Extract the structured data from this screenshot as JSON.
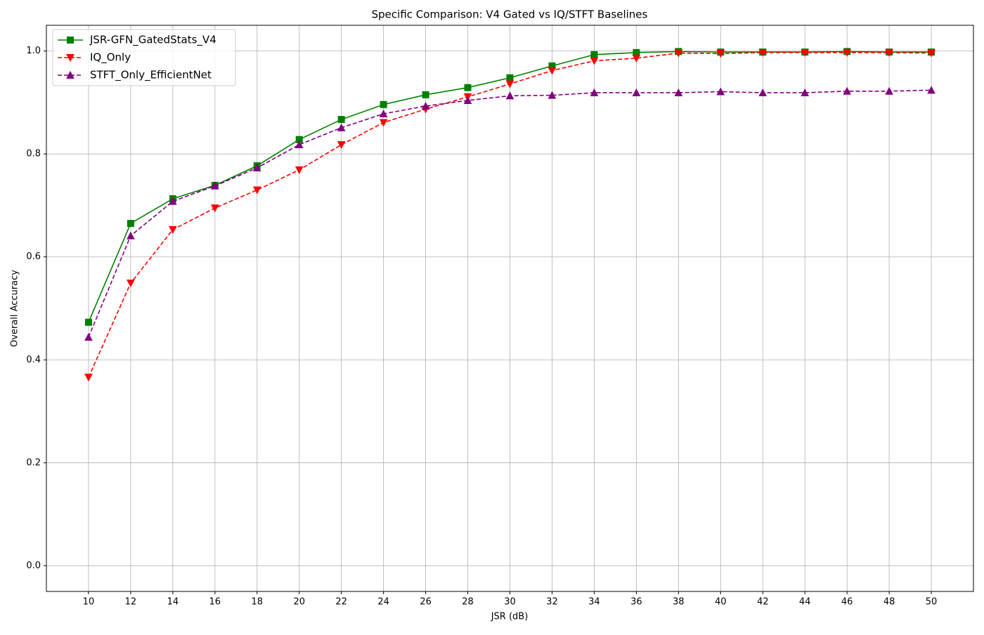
{
  "chart_data": {
    "type": "line",
    "title": "Specific Comparison: V4 Gated vs IQ/STFT Baselines",
    "xlabel": "JSR (dB)",
    "ylabel": "Overall Accuracy",
    "x": [
      10,
      12,
      14,
      16,
      18,
      20,
      22,
      24,
      26,
      28,
      30,
      32,
      34,
      36,
      38,
      40,
      42,
      44,
      46,
      48,
      50
    ],
    "series": [
      {
        "name": "JSR-GFN_GatedStats_V4",
        "color": "#008000",
        "linestyle": "solid",
        "marker": "square",
        "values": [
          0.473,
          0.665,
          0.713,
          0.739,
          0.777,
          0.828,
          0.867,
          0.896,
          0.915,
          0.929,
          0.948,
          0.971,
          0.993,
          0.997,
          0.999,
          0.998,
          0.998,
          0.998,
          0.999,
          0.998,
          0.998
        ]
      },
      {
        "name": "IQ_Only",
        "color": "#ff0000",
        "linestyle": "dashed",
        "marker": "triangle-down",
        "values": [
          0.366,
          0.549,
          0.653,
          0.695,
          0.73,
          0.769,
          0.818,
          0.861,
          0.887,
          0.911,
          0.936,
          0.962,
          0.981,
          0.986,
          0.996,
          0.995,
          0.997,
          0.997,
          0.997,
          0.997,
          0.996
        ]
      },
      {
        "name": "STFT_Only_EfficientNet",
        "color": "#800080",
        "linestyle": "dashed",
        "marker": "triangle-up",
        "values": [
          0.444,
          0.641,
          0.708,
          0.738,
          0.773,
          0.818,
          0.851,
          0.878,
          0.893,
          0.904,
          0.913,
          0.914,
          0.919,
          0.919,
          0.919,
          0.921,
          0.919,
          0.919,
          0.922,
          0.922,
          0.924
        ]
      }
    ],
    "xlim": [
      8,
      52
    ],
    "ylim": [
      -0.05,
      1.05
    ],
    "xticks": [
      10,
      12,
      14,
      16,
      18,
      20,
      22,
      24,
      26,
      28,
      30,
      32,
      34,
      36,
      38,
      40,
      42,
      44,
      46,
      48,
      50
    ],
    "yticks": [
      {
        "value": 0,
        "label": "0.0"
      },
      0.2,
      0.4,
      0.6,
      0.8,
      {
        "value": 1,
        "label": "1.0"
      }
    ],
    "grid": true,
    "legend": "upper-left"
  }
}
